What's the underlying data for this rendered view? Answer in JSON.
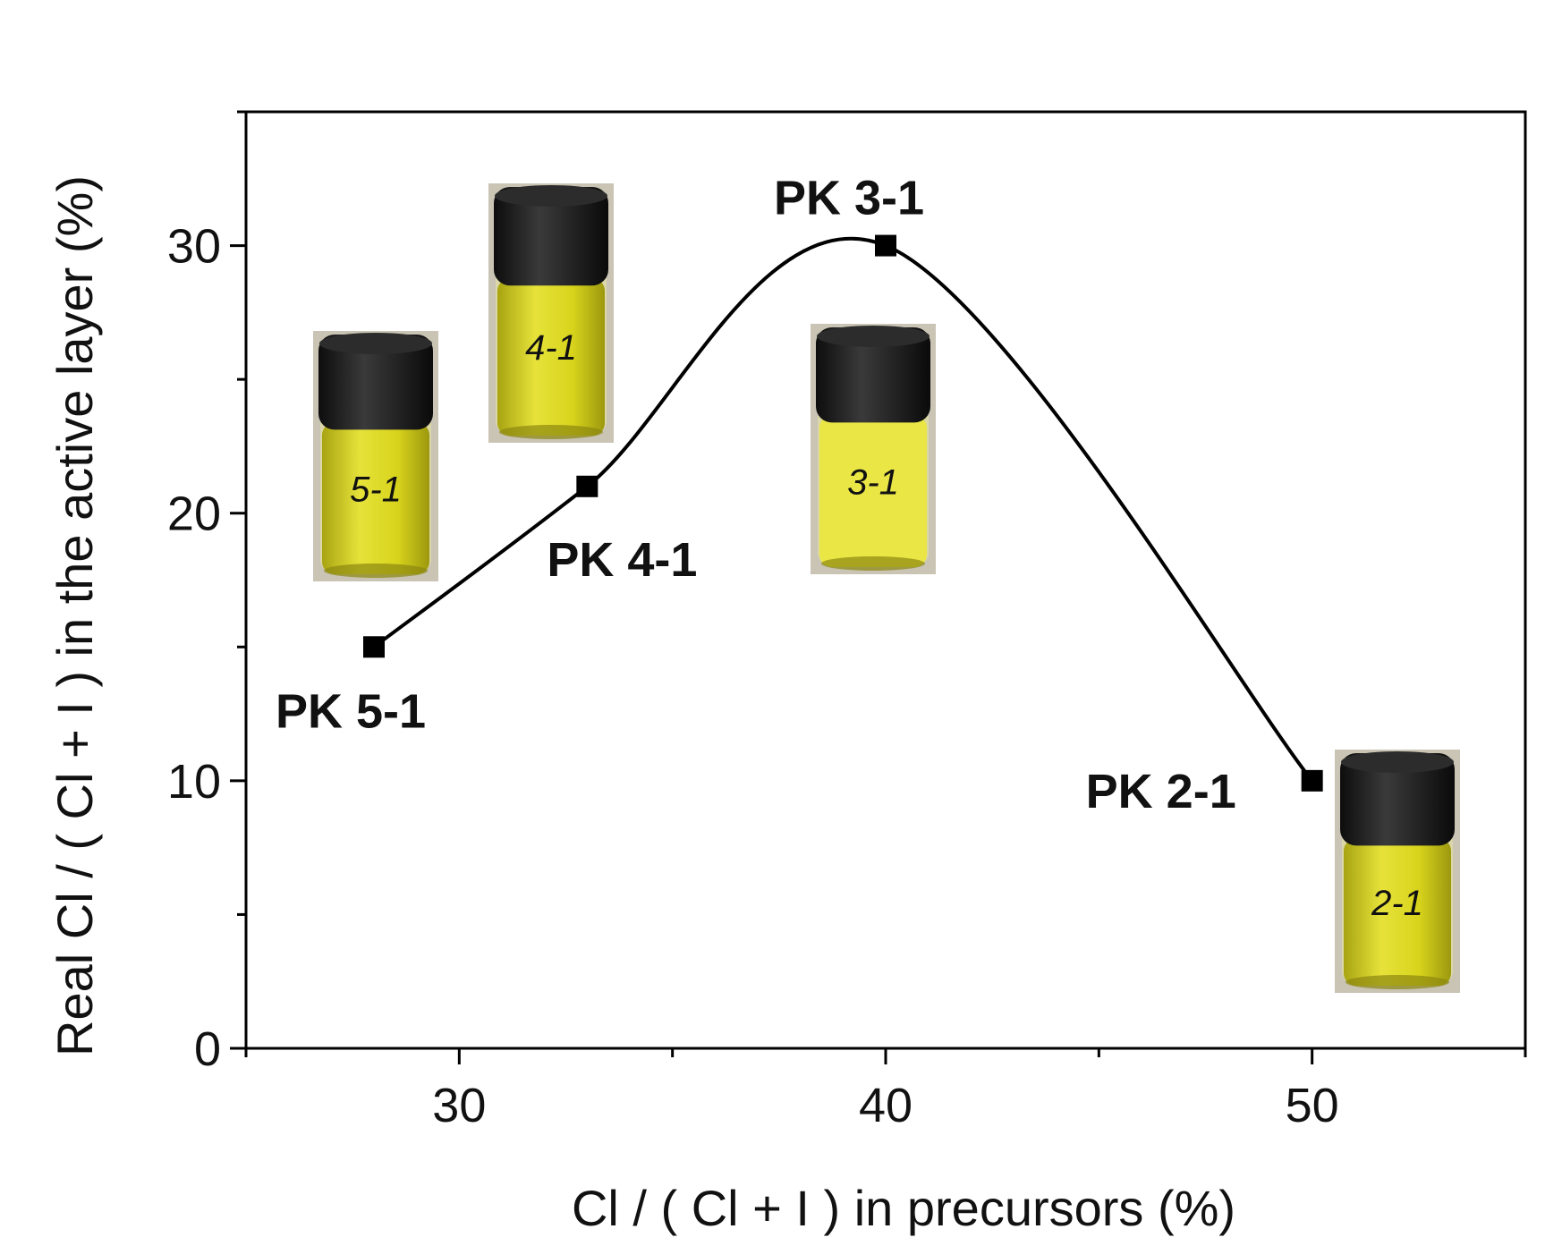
{
  "chart_data": {
    "type": "line",
    "xlabel": "Cl / ( Cl + I ) in precursors (%)",
    "ylabel": "Real Cl / ( Cl + I ) in the active layer (%)",
    "xlim": [
      25,
      55
    ],
    "ylim": [
      0,
      35
    ],
    "x_ticks": [
      30,
      40,
      50
    ],
    "y_ticks": [
      0,
      10,
      20,
      30
    ],
    "x_tick_labels": [
      "30",
      "40",
      "50"
    ],
    "y_tick_labels": [
      "0",
      "10",
      "20",
      "30"
    ],
    "grid": false,
    "smooth_line": true,
    "marker": "square",
    "series": [
      {
        "x": [
          28,
          33,
          40,
          50
        ],
        "y": [
          15,
          21,
          30,
          10
        ],
        "point_labels": [
          "PK 5-1",
          "PK 4-1",
          "PK 3-1",
          "PK 2-1"
        ]
      }
    ],
    "vial_labels": [
      "5-1",
      "4-1",
      "3-1",
      "2-1"
    ],
    "colors": {
      "line": "#000000",
      "marker": "#000000",
      "vial_cap": "#1b1b1b",
      "vial_liquid": "#d9d418",
      "vial_liquid_light": "#e9e645",
      "vial_background": "#c9c4b4"
    }
  }
}
